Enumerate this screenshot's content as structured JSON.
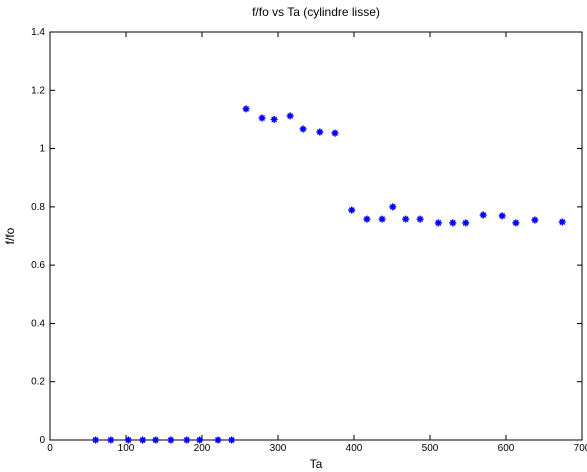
{
  "chart_data": {
    "type": "scatter",
    "title": "f/fo vs Ta (cylindre lisse)",
    "xlabel": "Ta",
    "ylabel": "f/fo",
    "series": [
      {
        "color": "#0000ff",
        "x": [
          60,
          80,
          103,
          122,
          139,
          159,
          180,
          197,
          221,
          239,
          258,
          279,
          295,
          316,
          333,
          355,
          375,
          397,
          417,
          437,
          451,
          468,
          487,
          511,
          530,
          547,
          570,
          595,
          613,
          638,
          674
        ],
        "values": [
          0,
          0,
          0,
          0,
          0,
          0,
          0,
          0,
          0,
          0,
          1.136,
          1.105,
          1.1,
          1.112,
          1.067,
          1.057,
          1.053,
          0.789,
          0.758,
          0.758,
          0.8,
          0.758,
          0.758,
          0.745,
          0.745,
          0.745,
          0.772,
          0.769,
          0.745,
          0.755,
          0.748
        ]
      }
    ],
    "xlim": [
      0,
      700
    ],
    "xticks": [
      0,
      100,
      200,
      300,
      400,
      500,
      600,
      700
    ],
    "ylim": [
      0,
      1.4
    ],
    "yticks": [
      0,
      0.2,
      0.4,
      0.6,
      0.8,
      1,
      1.2,
      1.4
    ]
  }
}
